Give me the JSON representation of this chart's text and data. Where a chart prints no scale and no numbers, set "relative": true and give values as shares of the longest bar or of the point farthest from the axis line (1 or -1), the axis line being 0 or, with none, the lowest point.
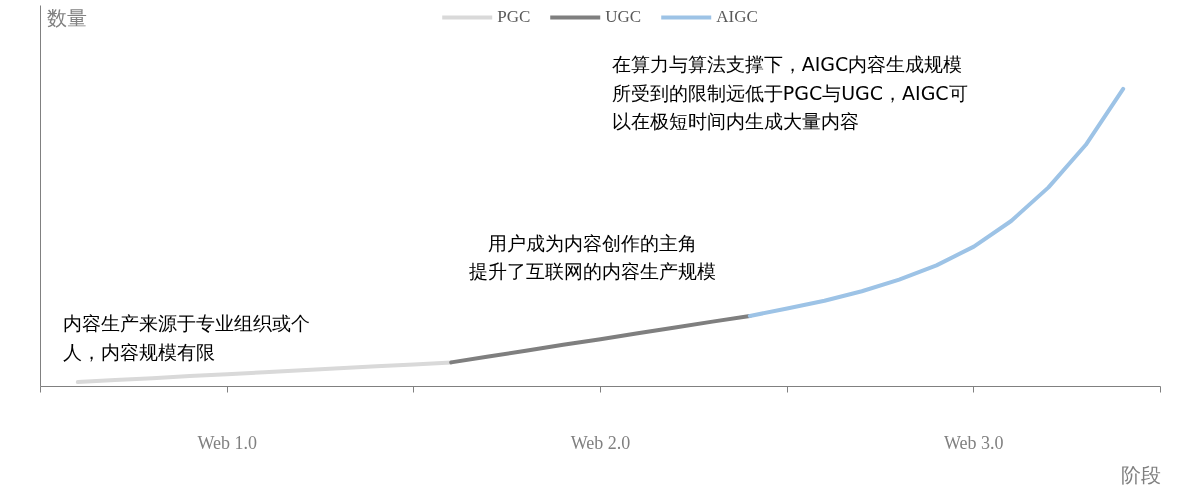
{
  "chart_data": {
    "type": "line",
    "relative": true,
    "ylabel": "数量",
    "xlabel": "阶段",
    "categories": [
      null,
      null,
      null,
      null,
      "Web 1.0",
      null,
      null,
      null,
      null,
      null,
      null,
      null,
      null,
      null,
      "Web 2.0",
      null,
      null,
      null,
      null,
      null,
      null,
      null,
      null,
      null,
      "Web 3.0",
      null,
      null,
      null,
      null
    ],
    "legend": "top",
    "grid": false,
    "series": [
      {
        "name": "PGC",
        "color": "#d9d9d9",
        "values": [
          0.015,
          0.022,
          0.028,
          0.035,
          0.041,
          0.048,
          0.055,
          0.061,
          0.068,
          0.074,
          0.081,
          null,
          null,
          null,
          null,
          null,
          null,
          null,
          null,
          null,
          null,
          null,
          null,
          null,
          null,
          null,
          null,
          null,
          null
        ]
      },
      {
        "name": "UGC",
        "color": "#7f7f7f",
        "values": [
          null,
          null,
          null,
          null,
          null,
          null,
          null,
          null,
          null,
          null,
          0.081,
          0.101,
          0.12,
          0.14,
          0.159,
          0.179,
          0.198,
          0.218,
          0.237,
          null,
          null,
          null,
          null,
          null,
          null,
          null,
          null,
          null,
          null
        ]
      },
      {
        "name": "AIGC",
        "color": "#9dc3e6",
        "values": [
          null,
          null,
          null,
          null,
          null,
          null,
          null,
          null,
          null,
          null,
          null,
          null,
          null,
          null,
          null,
          null,
          null,
          null,
          0.237,
          0.262,
          0.288,
          0.32,
          0.359,
          0.407,
          0.47,
          0.556,
          0.669,
          0.812,
          1.0
        ]
      }
    ],
    "annotations": [
      "内容生产来源于专业组织或个人，内容规模有限",
      "用户成为内容创作的主角提升了互联网的内容生产规模",
      "在算力与算法支撑下，AIGC内容生成规模所受到的限制远低于PGC与UGC，AIGC可以在极短时间内生成大量内容"
    ]
  }
}
